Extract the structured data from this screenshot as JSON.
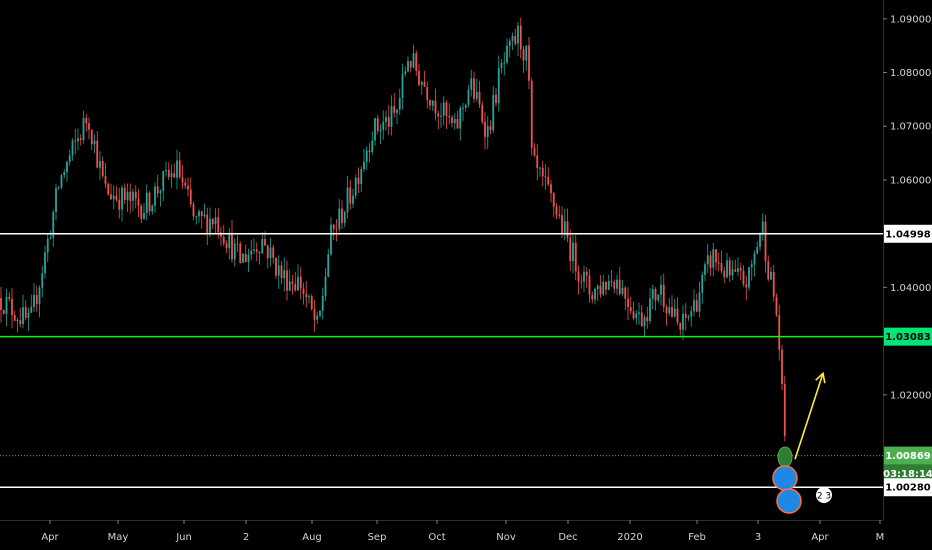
{
  "chart_data": {
    "type": "candlestick",
    "y_axis": {
      "ticks": [
        "1.09000",
        "1.08000",
        "1.07000",
        "1.06000",
        "1.04000",
        "1.02000"
      ],
      "tick_values": [
        1.09,
        1.08,
        1.07,
        1.06,
        1.04,
        1.02
      ],
      "range": [
        0.9967,
        1.0935
      ]
    },
    "x_axis": {
      "ticks": [
        "Apr",
        "May",
        "Jun",
        "2",
        "Aug",
        "Sep",
        "Oct",
        "Nov",
        "Dec",
        "2020",
        "Feb",
        "3",
        "Apr",
        "M"
      ]
    },
    "horizontal_lines": [
      {
        "value": 1.04998,
        "label": "1.04998",
        "color": "#ffffff",
        "style": "solid"
      },
      {
        "value": 1.03083,
        "label": "1.03083",
        "color": "#00ff00",
        "style": "solid"
      },
      {
        "value": 1.00869,
        "label": "1.00869",
        "color": "#4caf50",
        "style": "dotted"
      },
      {
        "value": 1.0028,
        "label": "1.00280",
        "color": "#ffffff",
        "style": "solid"
      }
    ],
    "last_price": "1.00869",
    "countdown": "03:18:14",
    "price_path": [
      [
        0,
        1.038
      ],
      [
        30,
        1.033
      ],
      [
        45,
        1.046
      ],
      [
        60,
        1.06
      ],
      [
        88,
        1.072
      ],
      [
        105,
        1.058
      ],
      [
        130,
        1.056
      ],
      [
        145,
        1.055
      ],
      [
        160,
        1.059
      ],
      [
        178,
        1.062
      ],
      [
        195,
        1.052
      ],
      [
        215,
        1.053
      ],
      [
        240,
        1.045
      ],
      [
        262,
        1.049
      ],
      [
        282,
        1.042
      ],
      [
        300,
        1.041
      ],
      [
        318,
        1.032
      ],
      [
        330,
        1.049
      ],
      [
        352,
        1.058
      ],
      [
        372,
        1.069
      ],
      [
        396,
        1.072
      ],
      [
        408,
        1.083
      ],
      [
        430,
        1.076
      ],
      [
        455,
        1.069
      ],
      [
        470,
        1.078
      ],
      [
        488,
        1.069
      ],
      [
        500,
        1.08
      ],
      [
        518,
        1.087
      ],
      [
        528,
        1.082
      ],
      [
        532,
        1.063
      ],
      [
        555,
        1.055
      ],
      [
        575,
        1.045
      ],
      [
        590,
        1.039
      ],
      [
        615,
        1.042
      ],
      [
        640,
        1.034
      ],
      [
        660,
        1.04
      ],
      [
        680,
        1.032
      ],
      [
        695,
        1.037
      ],
      [
        712,
        1.046
      ],
      [
        730,
        1.042
      ],
      [
        748,
        1.041
      ],
      [
        762,
        1.052
      ],
      [
        768,
        1.044
      ],
      [
        776,
        1.036
      ],
      [
        782,
        1.022
      ],
      [
        786,
        1.008
      ]
    ],
    "annotations": {
      "arrow": {
        "color": "#ffeb3b",
        "from": [
          795,
          1.008
        ],
        "to": [
          823,
          1.024
        ]
      },
      "badge_text": "2 3"
    },
    "colors": {
      "up": "#26a69a",
      "down": "#ef5350",
      "axis_text": "#d1d4dc",
      "background": "#000000"
    }
  }
}
